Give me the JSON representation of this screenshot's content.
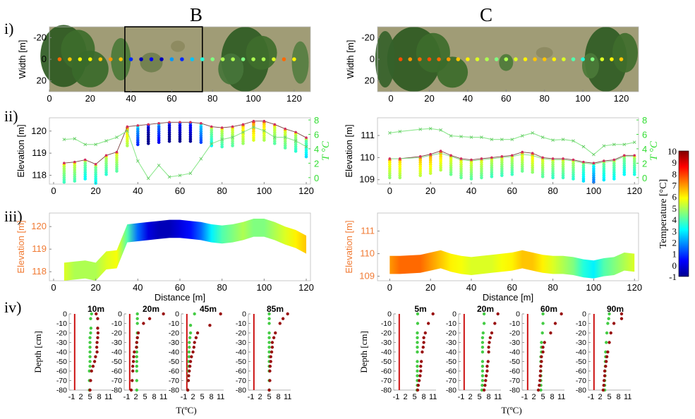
{
  "figure": {
    "site_labels": [
      "B",
      "C"
    ],
    "row_labels": [
      "i)",
      "ii)",
      "iii)",
      "iv)"
    ]
  },
  "colorbar": {
    "label": "Temperature [°C]",
    "min": -1,
    "max": 10,
    "ticks": [
      "10",
      "9",
      "8",
      "7",
      "6",
      "5",
      "4",
      "3",
      "2",
      "1",
      "0",
      "-1"
    ],
    "colors": [
      "#00008f",
      "#0000ff",
      "#0080ff",
      "#00ffff",
      "#80ff80",
      "#ffff00",
      "#ff8000",
      "#ff0000",
      "#800000"
    ]
  },
  "chart_data": [
    {
      "id": "B-i",
      "type": "scatter",
      "site": "B",
      "xlabel": "",
      "ylabel": "Width [m]",
      "xlim": [
        0,
        128
      ],
      "ylim": [
        30,
        -30
      ],
      "xticks": [
        "0",
        "20",
        "40",
        "60",
        "80",
        "100",
        "120"
      ],
      "yticks": [
        "-20",
        "0",
        "20"
      ],
      "box_x": [
        37,
        75
      ],
      "x": [
        5,
        10,
        15,
        20,
        25,
        30,
        35,
        40,
        45,
        50,
        55,
        60,
        65,
        70,
        75,
        80,
        85,
        90,
        95,
        100,
        105,
        110,
        115,
        120
      ],
      "temps": [
        7.5,
        6.5,
        6,
        6,
        6.5,
        7,
        6.5,
        0.8,
        -0.5,
        0.2,
        -0.5,
        2,
        0.8,
        2.5,
        3.5,
        4.5,
        5,
        5,
        4.5,
        5,
        5,
        5.5,
        7.5,
        6
      ]
    },
    {
      "id": "C-i",
      "type": "scatter",
      "site": "C",
      "xlabel": "",
      "ylabel": "Width [m]",
      "xlim": [
        -7,
        129
      ],
      "ylim": [
        30,
        -30
      ],
      "xticks": [
        "0",
        "20",
        "40",
        "60",
        "80",
        "100",
        "120"
      ],
      "yticks": [
        "-20",
        "0",
        "20"
      ],
      "x": [
        5,
        10,
        15,
        20,
        25,
        30,
        35,
        40,
        45,
        50,
        55,
        60,
        65,
        70,
        75,
        80,
        85,
        90,
        95,
        100,
        105,
        110,
        115,
        120
      ],
      "temps": [
        7.8,
        7,
        7.5,
        7.8,
        7.5,
        7,
        6.5,
        6,
        5.5,
        5,
        4.5,
        5,
        5.5,
        6,
        6.5,
        6.5,
        6,
        5.5,
        4,
        3.5,
        4.5,
        5.5,
        6,
        6.5
      ]
    },
    {
      "id": "B-ii",
      "type": "line",
      "site": "B",
      "xlabel": "",
      "ylabel": "Elevation [m]",
      "y2label": "T °C",
      "xlim": [
        -2,
        122
      ],
      "ylim": [
        117.6,
        120.6
      ],
      "y2lim": [
        -0.9,
        8.3
      ],
      "xticks": [
        "0",
        "20",
        "40",
        "60",
        "80",
        "100",
        "120"
      ],
      "yticks": [
        "118",
        "119",
        "120"
      ],
      "y2ticks": [
        "0",
        "2",
        "4",
        "6",
        "8"
      ],
      "series": [
        {
          "name": "",
          "axis": "left",
          "x": [
            5,
            10,
            15,
            20,
            25,
            30,
            35,
            40,
            45,
            50,
            55,
            60,
            65,
            70,
            75,
            80,
            85,
            90,
            95,
            100,
            105,
            110,
            115,
            120
          ],
          "y": [
            118.55,
            118.6,
            118.7,
            118.5,
            118.9,
            119.05,
            120.2,
            120.25,
            120.3,
            120.35,
            120.4,
            120.4,
            120.4,
            120.35,
            120.2,
            120.15,
            120.2,
            120.3,
            120.45,
            120.45,
            120.3,
            120.1,
            119.95,
            119.7
          ]
        },
        {
          "name": "",
          "axis": "right",
          "x": [
            5,
            10,
            15,
            20,
            25,
            30,
            35,
            40,
            45,
            50,
            55,
            60,
            65,
            70,
            75,
            80,
            85,
            90,
            95,
            100,
            105,
            110,
            115,
            120
          ],
          "y": [
            5.3,
            5.4,
            4.6,
            4.6,
            5.1,
            5.6,
            6.5,
            2.3,
            -0.1,
            1.7,
            0.1,
            0.3,
            0.6,
            2.6,
            4.7,
            5.3,
            5.6,
            6.3,
            7,
            6.5,
            5.6,
            5.6,
            5.1,
            4.3
          ]
        }
      ],
      "profile_depth_m": 0.8
    },
    {
      "id": "C-ii",
      "type": "line",
      "site": "C",
      "xlabel": "",
      "ylabel": "Elevation [m]",
      "y2label": "T °C",
      "xlim": [
        -6,
        122
      ],
      "ylim": [
        108.8,
        111.8
      ],
      "y2lim": [
        -0.9,
        8.3
      ],
      "xticks": [
        "0",
        "20",
        "40",
        "60",
        "80",
        "100",
        "120"
      ],
      "yticks": [
        "109",
        "110",
        "111"
      ],
      "y2ticks": [
        "0",
        "2",
        "4",
        "6",
        "8"
      ],
      "series": [
        {
          "name": "",
          "axis": "left",
          "x": [
            0,
            5,
            15,
            20,
            25,
            30,
            35,
            40,
            45,
            50,
            55,
            60,
            65,
            70,
            75,
            80,
            85,
            90,
            95,
            100,
            105,
            110,
            115,
            120
          ],
          "y": [
            109.95,
            109.95,
            110.05,
            110.15,
            110.3,
            110.1,
            109.95,
            109.9,
            109.95,
            110,
            110.05,
            110.1,
            110.25,
            110.2,
            110,
            109.95,
            109.95,
            109.9,
            109.8,
            109.75,
            109.85,
            109.9,
            110.1,
            110.1
          ],
          "y_green": [
            109.95,
            109.95,
            110.0,
            110.1,
            110.2,
            110.05,
            109.9,
            109.85,
            109.9,
            109.95,
            110,
            110.05,
            110.15,
            110.1,
            109.95,
            109.9,
            109.9,
            109.85,
            109.75,
            109.7,
            109.8,
            109.85,
            110.05,
            110.05
          ]
        },
        {
          "name": "",
          "axis": "right",
          "x": [
            0,
            5,
            15,
            20,
            25,
            30,
            35,
            40,
            45,
            50,
            55,
            60,
            65,
            70,
            75,
            80,
            85,
            90,
            95,
            100,
            105,
            110,
            115,
            120
          ],
          "y": [
            6.2,
            6.4,
            6.7,
            6.8,
            6.6,
            5.8,
            5.7,
            5.6,
            5.6,
            5.3,
            5.3,
            5.3,
            5.8,
            6.2,
            5.6,
            5.2,
            5.3,
            5.1,
            4.3,
            3.2,
            4.4,
            4.6,
            4.6,
            4.9
          ]
        }
      ],
      "profile_depth_m": 0.8
    },
    {
      "id": "B-iii",
      "type": "heatmap",
      "site": "B",
      "xlabel": "Distance [m]",
      "ylabel": "Elevation [m]",
      "xlim": [
        -2,
        122
      ],
      "ylim": [
        117.6,
        120.6
      ],
      "xticks": [
        "0",
        "20",
        "40",
        "60",
        "80",
        "100",
        "120"
      ],
      "yticks": [
        "118",
        "119",
        "120"
      ],
      "x": [
        5,
        10,
        15,
        20,
        25,
        30,
        35,
        40,
        45,
        50,
        55,
        60,
        65,
        70,
        75,
        80,
        85,
        90,
        95,
        100,
        105,
        110,
        115,
        120
      ],
      "surface": [
        118.4,
        118.45,
        118.5,
        118.4,
        118.9,
        118.95,
        120.1,
        120.15,
        120.2,
        120.25,
        120.3,
        120.3,
        120.25,
        120.2,
        120.1,
        120.05,
        120.1,
        120.2,
        120.35,
        120.35,
        120.2,
        120.0,
        119.85,
        119.6
      ],
      "temps": [
        5.5,
        5,
        5,
        5,
        5.5,
        5.8,
        4,
        1.5,
        0,
        -0.5,
        -0.5,
        0,
        0.5,
        1.5,
        3,
        4,
        4.5,
        5,
        4.5,
        4.5,
        5,
        5.5,
        6,
        6.5
      ],
      "depth_m": 0.8
    },
    {
      "id": "C-iii",
      "type": "heatmap",
      "site": "C",
      "xlabel": "Distance [m]",
      "ylabel": "Elevation [m]",
      "xlim": [
        -6,
        122
      ],
      "ylim": [
        108.8,
        111.8
      ],
      "xticks": [
        "0",
        "20",
        "40",
        "60",
        "80",
        "100",
        "120"
      ],
      "yticks": [
        "109",
        "110",
        "111"
      ],
      "x": [
        0,
        5,
        15,
        20,
        25,
        30,
        35,
        40,
        45,
        50,
        55,
        60,
        65,
        70,
        75,
        80,
        85,
        90,
        95,
        100,
        105,
        110,
        115,
        120
      ],
      "surface": [
        109.9,
        109.9,
        109.95,
        110.05,
        110.15,
        110.0,
        109.9,
        109.85,
        109.9,
        109.95,
        110,
        110.05,
        110.15,
        110.05,
        109.95,
        109.9,
        109.9,
        109.85,
        109.75,
        109.7,
        109.8,
        109.85,
        110.05,
        110.0
      ],
      "temps": [
        7,
        7.5,
        7.5,
        7,
        6.5,
        6,
        5.8,
        5.5,
        5.5,
        5.5,
        5.8,
        6,
        6.5,
        6.5,
        6,
        5.5,
        5,
        4.5,
        3.5,
        3,
        4,
        4.5,
        5,
        5.5
      ],
      "depth_m": 0.8
    }
  ],
  "depth_profiles": {
    "xlabel": "T(ºC)",
    "ylabel": "Depth [cm]",
    "xticks": [
      "-1",
      "2",
      "5",
      "8",
      "11"
    ],
    "yticks": [
      "0",
      "-10",
      "-20",
      "-30",
      "-40",
      "-50",
      "-60",
      "-70",
      "-80"
    ],
    "xlim": [
      -1.8,
      12
    ],
    "ylim": [
      -80,
      0
    ],
    "B": [
      {
        "title": "10m",
        "depth": [
          0,
          -5,
          -15,
          -20,
          -25,
          -30,
          -35,
          -40,
          -45,
          -50,
          -55,
          -60,
          -70,
          -80
        ],
        "green": [
          5.5,
          5.2,
          5.3,
          5.2,
          5,
          5,
          5,
          5,
          5,
          5,
          5,
          4.8,
          4.8,
          4.8
        ],
        "red": [
          7,
          7.5,
          7.5,
          7.6,
          7.5,
          7.3,
          7.2,
          7.3,
          6.8,
          6.5,
          6,
          5.5,
          5.2,
          5
        ]
      },
      {
        "title": "20m",
        "depth": [
          0,
          -5,
          -10,
          -20,
          -25,
          -30,
          -35,
          -40,
          -45,
          -50,
          -55,
          -60,
          -70,
          -80
        ],
        "green": [
          2.5,
          2.5,
          2.5,
          2.5,
          2.5,
          2.3,
          2.3,
          2.3,
          2.3,
          2.3,
          2.3,
          2.3,
          2.3,
          2.3
        ],
        "red": [
          11,
          6.5,
          4.5,
          2.8,
          2.5,
          2.3,
          2.2,
          1.5,
          1.3,
          1.2,
          1,
          1,
          0.8,
          0.5
        ]
      },
      {
        "title": "45m",
        "depth": [
          0,
          -12,
          -20,
          -25,
          -30,
          -35,
          -40,
          -45,
          -50,
          -55,
          -60,
          -65,
          -70,
          -80
        ],
        "green": [
          2.5,
          1.2,
          1.2,
          1,
          0.8,
          0.8,
          0.7,
          0.7,
          0.6,
          0.6,
          0.5,
          0.5,
          0.4,
          0.3
        ],
        "red": [
          11,
          7.5,
          3.5,
          3,
          2.5,
          2.3,
          2,
          1.5,
          1.2,
          1,
          0.8,
          0.6,
          0.5,
          0.3
        ]
      },
      {
        "title": "85m",
        "depth": [
          0,
          -5,
          -10,
          -20,
          -25,
          -30,
          -35,
          -40,
          -45,
          -50,
          -55,
          -60,
          -70,
          -80
        ],
        "green": [
          5,
          5,
          5,
          5,
          5,
          5,
          5,
          5,
          5,
          5,
          5,
          5,
          5,
          5
        ],
        "red": [
          11,
          9.5,
          8.5,
          7,
          6.5,
          6,
          6,
          5.8,
          5.5,
          5.5,
          5.3,
          5.2,
          5.2,
          5
        ]
      }
    ],
    "C": [
      {
        "title": "5m",
        "depth": [
          0,
          -10,
          -20,
          -25,
          -30,
          -35,
          -40,
          -50,
          -55,
          -60,
          -65,
          -70,
          -75,
          -80
        ],
        "green": [
          6,
          6,
          5.9,
          5.9,
          5.9,
          5.9,
          5.9,
          5.9,
          5.9,
          5.9,
          5.9,
          5.9,
          5.9,
          5.8
        ],
        "red": [
          11,
          9.5,
          8.5,
          8,
          8,
          7.8,
          7.5,
          7.2,
          7,
          7,
          6.8,
          6.5,
          6.2,
          6
        ]
      },
      {
        "title": "20m",
        "depth": [
          0,
          -10,
          -20,
          -25,
          -30,
          -35,
          -40,
          -50,
          -55,
          -60,
          -65,
          -70,
          -75,
          -80
        ],
        "green": [
          6.5,
          6.5,
          6.2,
          6,
          6,
          6,
          6,
          6,
          6,
          6,
          6,
          6,
          5.9,
          5.8
        ],
        "red": [
          11,
          10,
          9,
          8.5,
          8.2,
          8,
          8,
          7.8,
          7.5,
          7.5,
          7.2,
          7,
          6.8,
          6.5
        ]
      },
      {
        "title": "60m",
        "depth": [
          0,
          -10,
          -20,
          -30,
          -35,
          -40,
          -45,
          -50,
          -55,
          -60,
          -65,
          -70,
          -75,
          -80
        ],
        "green": [
          5,
          5,
          4.8,
          4.5,
          4.5,
          4.5,
          4.3,
          4.3,
          4.3,
          4.3,
          4.3,
          4.3,
          4.3,
          4.3
        ],
        "red": [
          11,
          9,
          7.5,
          5.5,
          5,
          5,
          4.5,
          4.5,
          4.3,
          4.2,
          4.1,
          4,
          3.8,
          3.5
        ]
      },
      {
        "title": "90m",
        "depth": [
          0,
          -5,
          -10,
          -20,
          -30,
          -40,
          -45,
          -50,
          -55,
          -60,
          -65,
          -70,
          -75,
          -80
        ],
        "green": [
          5,
          4.8,
          4.5,
          4.2,
          4,
          3.8,
          3.8,
          3.7,
          3.7,
          3.6,
          3.6,
          3.5,
          3.5,
          3.5
        ],
        "red": [
          9,
          9,
          6.5,
          5.5,
          5,
          4.5,
          4.2,
          4,
          3.8,
          3.5,
          3.5,
          3.3,
          3.2,
          3
        ]
      }
    ]
  }
}
